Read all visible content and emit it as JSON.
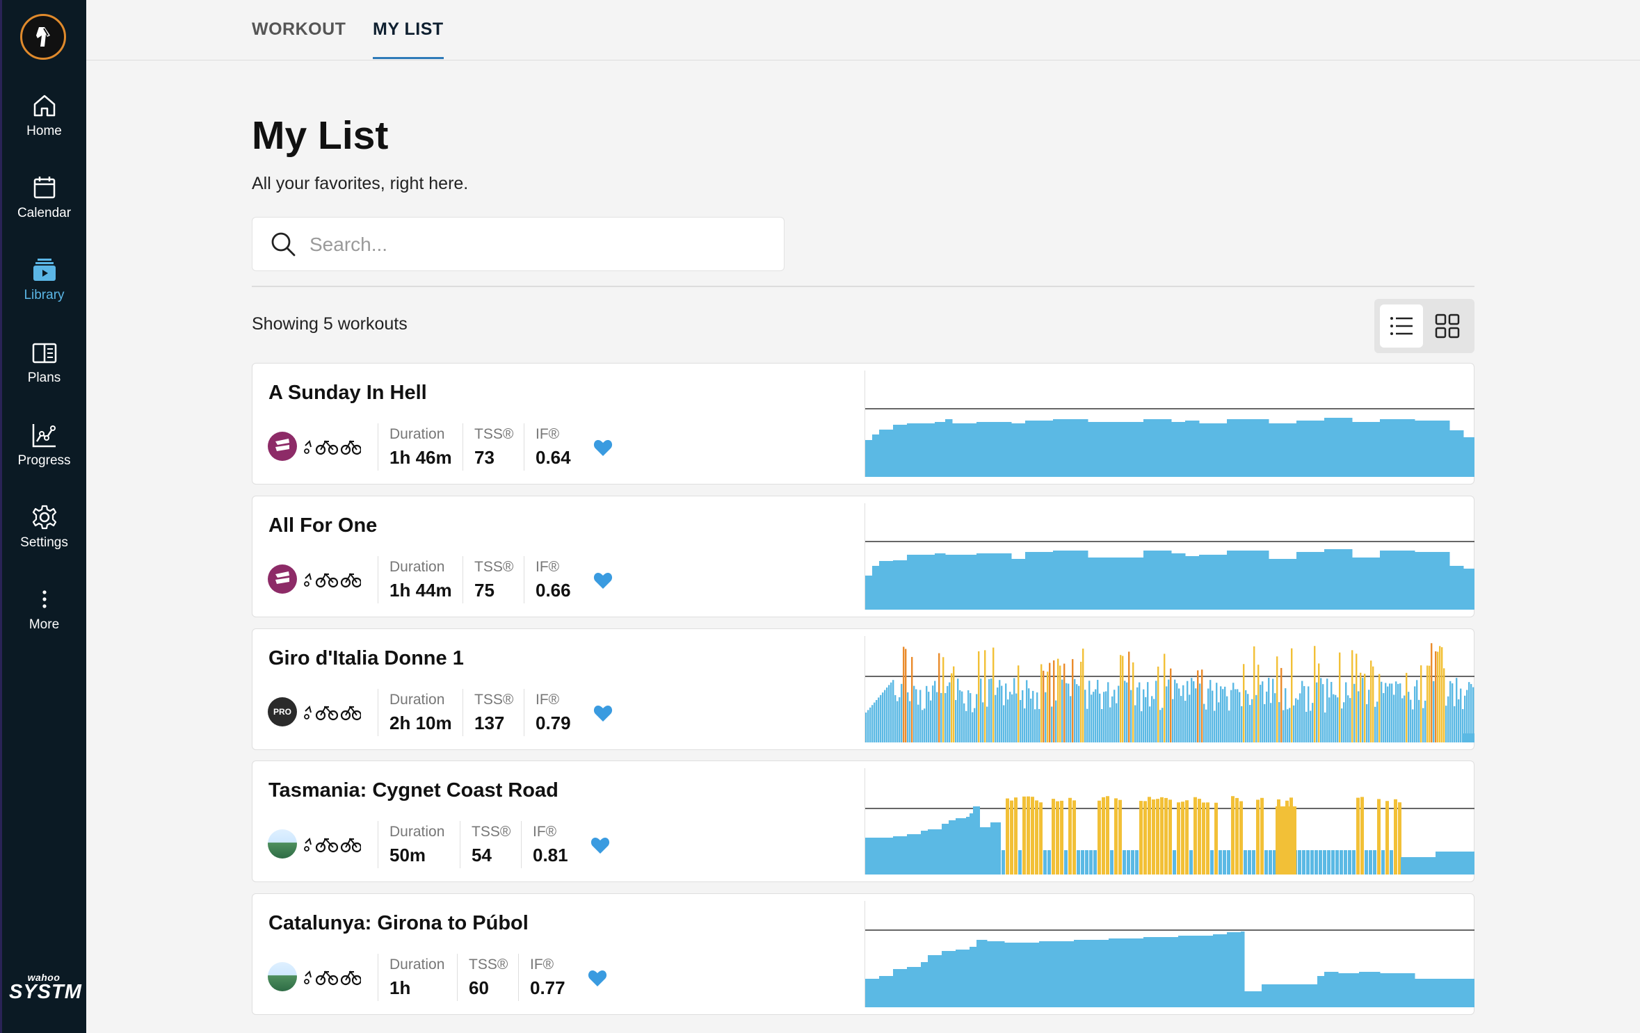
{
  "sidebar": {
    "items": [
      {
        "label": "Home",
        "icon": "home-icon",
        "active": false
      },
      {
        "label": "Calendar",
        "icon": "calendar-icon",
        "active": false
      },
      {
        "label": "Library",
        "icon": "library-icon",
        "active": true
      },
      {
        "label": "Plans",
        "icon": "plans-icon",
        "active": false
      },
      {
        "label": "Progress",
        "icon": "progress-icon",
        "active": false
      },
      {
        "label": "Settings",
        "icon": "settings-icon",
        "active": false
      },
      {
        "label": "More",
        "icon": "more-icon",
        "active": false
      }
    ],
    "brand_small": "wahoo",
    "brand_big": "SYSTM"
  },
  "tabs": [
    {
      "label": "WORKOUT",
      "active": false
    },
    {
      "label": "MY LIST",
      "active": true
    }
  ],
  "page": {
    "title": "My List",
    "subtitle": "All your favorites, right here.",
    "search_placeholder": "Search...",
    "showing": "Showing 5 workouts"
  },
  "colors": {
    "sidebar": "#0b1a24",
    "accent": "#5bb6e6",
    "power_blue": "#5bb9e4",
    "power_yellow": "#f2c037",
    "power_orange": "#ea8b2c",
    "svl_badge": "#8d2b67"
  },
  "labels": {
    "duration": "Duration",
    "tss": "TSS®",
    "if": "IF®"
  },
  "workouts": [
    {
      "title": "A Sunday In Hell",
      "badge": "svl",
      "duration": "1h 46m",
      "tss": "73",
      "if": "0.64",
      "favorite": true,
      "profile": "steady"
    },
    {
      "title": "All For One",
      "badge": "svl",
      "duration": "1h 44m",
      "tss": "75",
      "if": "0.66",
      "favorite": true,
      "profile": "steady"
    },
    {
      "title": "Giro d'Italia Donne 1",
      "badge": "pro",
      "badge_text": "PRO",
      "duration": "2h 10m",
      "tss": "137",
      "if": "0.79",
      "favorite": true,
      "profile": "race"
    },
    {
      "title": "Tasmania: Cygnet Coast Road",
      "badge": "land",
      "duration": "50m",
      "tss": "54",
      "if": "0.81",
      "favorite": true,
      "profile": "intervals"
    },
    {
      "title": "Catalunya: Girona to Púbol",
      "badge": "land",
      "duration": "1h",
      "tss": "60",
      "if": "0.77",
      "favorite": true,
      "profile": "climb"
    }
  ]
}
